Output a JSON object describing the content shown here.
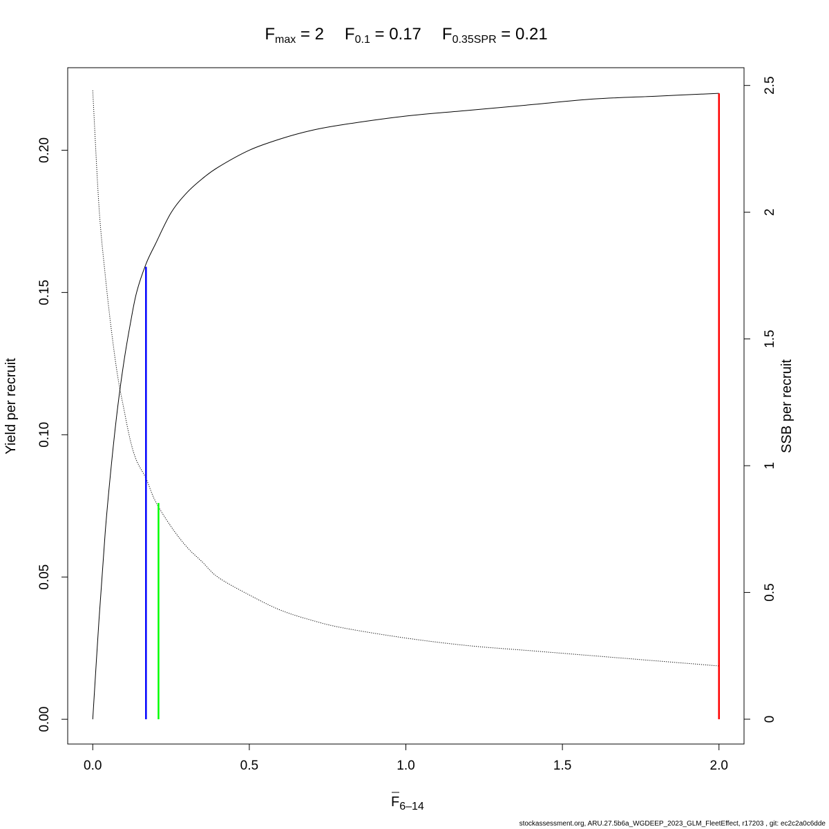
{
  "chart_data": {
    "type": "line",
    "title": {
      "fmax": {
        "main": "F",
        "sub": "max",
        "value": " = 2"
      },
      "f01": {
        "main": "F",
        "sub": "0.1",
        "value": " = 0.17"
      },
      "fspr": {
        "main": "F",
        "sub": "0.35SPR",
        "value": " = 0.21"
      }
    },
    "xlabel": {
      "main": "F",
      "sub": "6–14"
    },
    "ylabel_left": "Yield per recruit",
    "ylabel_right": "SSB per recruit",
    "xlim": [
      -0.08,
      2.08
    ],
    "ylim_left": [
      -0.0087,
      0.229
    ],
    "ylim_right": [
      -0.098,
      2.57
    ],
    "x_ticks": [
      {
        "value": 0.0,
        "label": "0.0"
      },
      {
        "value": 0.5,
        "label": "0.5"
      },
      {
        "value": 1.0,
        "label": "1.0"
      },
      {
        "value": 1.5,
        "label": "1.5"
      },
      {
        "value": 2.0,
        "label": "2.0"
      }
    ],
    "y_left_ticks": [
      {
        "value": 0.0,
        "label": "0.00"
      },
      {
        "value": 0.05,
        "label": "0.05"
      },
      {
        "value": 0.1,
        "label": "0.10"
      },
      {
        "value": 0.15,
        "label": "0.15"
      },
      {
        "value": 0.2,
        "label": "0.20"
      }
    ],
    "y_right_ticks": [
      {
        "value": 0.0,
        "label": "0"
      },
      {
        "value": 0.5,
        "label": "0.5"
      },
      {
        "value": 1.0,
        "label": "1"
      },
      {
        "value": 1.5,
        "label": "1.5"
      },
      {
        "value": 2.0,
        "label": "2"
      },
      {
        "value": 2.5,
        "label": "2.5"
      }
    ],
    "series": [
      {
        "axis": "left",
        "style": "solid",
        "color": "#000000",
        "x": [
          0.0,
          0.02,
          0.04,
          0.06,
          0.08,
          0.1,
          0.12,
          0.14,
          0.17,
          0.2,
          0.25,
          0.3,
          0.35,
          0.4,
          0.5,
          0.6,
          0.7,
          0.8,
          1.0,
          1.2,
          1.4,
          1.6,
          1.8,
          2.0
        ],
        "y": [
          0.0,
          0.035,
          0.066,
          0.09,
          0.11,
          0.126,
          0.139,
          0.15,
          0.16,
          0.167,
          0.178,
          0.185,
          0.19,
          0.194,
          0.2,
          0.204,
          0.207,
          0.209,
          0.212,
          0.214,
          0.216,
          0.218,
          0.219,
          0.22
        ]
      },
      {
        "axis": "right",
        "style": "dotted",
        "color": "#000000",
        "x": [
          0.0,
          0.02,
          0.04,
          0.06,
          0.08,
          0.1,
          0.12,
          0.14,
          0.17,
          0.2,
          0.25,
          0.3,
          0.35,
          0.4,
          0.5,
          0.6,
          0.7,
          0.8,
          1.0,
          1.2,
          1.4,
          1.6,
          1.8,
          2.0
        ],
        "y": [
          2.48,
          2.02,
          1.75,
          1.53,
          1.35,
          1.22,
          1.1,
          1.02,
          0.95,
          0.86,
          0.76,
          0.68,
          0.62,
          0.56,
          0.49,
          0.43,
          0.39,
          0.36,
          0.32,
          0.29,
          0.27,
          0.25,
          0.23,
          0.21
        ]
      }
    ],
    "reference_lines": [
      {
        "x": 0.17,
        "y0": 0.0,
        "y1": 0.159,
        "color": "#0000ff"
      },
      {
        "x": 0.21,
        "y0": 0.0,
        "y1": 0.076,
        "color": "#00ff00"
      },
      {
        "x": 2.0,
        "y0": 0.0,
        "y1": 0.22,
        "color": "#ff0000"
      }
    ],
    "grid": false,
    "legend": "none"
  },
  "footer": "stockassessment.org, ARU.27.5b6a_WGDEEP_2023_GLM_FleetEffect, r17203 , git: ec2c2a0c6dde"
}
